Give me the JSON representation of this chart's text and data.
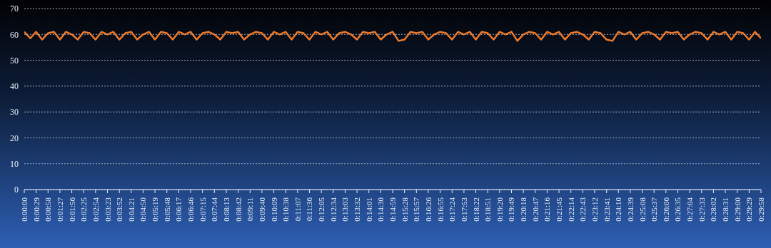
{
  "chart_data": {
    "type": "line",
    "categories": [
      "0:00:00",
      null,
      "0:00:29",
      null,
      "0:00:58",
      null,
      "0:01:27",
      null,
      "0:01:56",
      null,
      "0:02:25",
      null,
      "0:02:54",
      null,
      "0:03:23",
      null,
      "0:03:52",
      null,
      "0:04:21",
      null,
      "0:04:50",
      null,
      "0:05:19",
      null,
      "0:05:48",
      null,
      "0:06:17",
      null,
      "0:06:46",
      null,
      "0:07:15",
      null,
      "0:07:44",
      null,
      "0:08:13",
      null,
      "0:08:42",
      null,
      "0:09:11",
      null,
      "0:09:40",
      null,
      "0:10:09",
      null,
      "0:10:38",
      null,
      "0:11:07",
      null,
      "0:11:36",
      null,
      "0:12:05",
      null,
      "0:12:34",
      null,
      "0:13:03",
      null,
      "0:13:32",
      null,
      "0:14:01",
      null,
      "0:14:30",
      null,
      "0:14:59",
      null,
      "0:15:28",
      null,
      "0:15:57",
      null,
      "0:16:26",
      null,
      "0:16:55",
      null,
      "0:17:24",
      null,
      "0:17:53",
      null,
      "0:18:22",
      null,
      "0:18:51",
      null,
      "0:19:20",
      null,
      "0:19:49",
      null,
      "0:20:18",
      null,
      "0:20:47",
      null,
      "0:21:16",
      null,
      "0:21:45",
      null,
      "0:22:14",
      null,
      "0:22:43",
      null,
      "0:23:12",
      null,
      "0:23:41",
      null,
      "0:24:10",
      null,
      "0:24:39",
      null,
      "0:25:08",
      null,
      "0:25:37",
      null,
      "0:26:06",
      null,
      "0:26:35",
      null,
      "0:27:04",
      null,
      "0:27:33",
      null,
      "0:28:02",
      null,
      "0:28:31",
      null,
      "0:29:00",
      null,
      "0:29:29",
      null,
      "0:29:58"
    ],
    "series": [
      {
        "color": "#f07a2a",
        "values": [
          61,
          58.5,
          61,
          58,
          60.5,
          61,
          58,
          61,
          60,
          58,
          61,
          60.5,
          58,
          61,
          60,
          61,
          58,
          60.5,
          61,
          58,
          60,
          61,
          58,
          61,
          60.5,
          58,
          61,
          60,
          61,
          58,
          60.5,
          61,
          60,
          58,
          61,
          60.5,
          61,
          58,
          60,
          61,
          60.5,
          58,
          61,
          60,
          61,
          58,
          61,
          60.5,
          58,
          61,
          60,
          61,
          58,
          60.5,
          61,
          60,
          58,
          61,
          60.5,
          61,
          58,
          60,
          61,
          57.5,
          58,
          61,
          60.5,
          61,
          58,
          60,
          61,
          60.5,
          58,
          61,
          60,
          61,
          58,
          61,
          60.5,
          58,
          61,
          60,
          61,
          57.5,
          60,
          61,
          60.5,
          58,
          61,
          60,
          61,
          58,
          60.5,
          61,
          60,
          58,
          61,
          60.5,
          58,
          57.5,
          61,
          60,
          61,
          58,
          60.5,
          61,
          60,
          58,
          61,
          60.5,
          61,
          58,
          60,
          61,
          60.5,
          58,
          61,
          60,
          61,
          58,
          61,
          60.5,
          58,
          61,
          58.5
        ]
      }
    ],
    "ylim": [
      0,
      70
    ],
    "yticks": [
      0,
      10,
      20,
      30,
      40,
      50,
      60,
      70
    ],
    "grid": "y",
    "marker": "none",
    "line_style": "solid"
  }
}
